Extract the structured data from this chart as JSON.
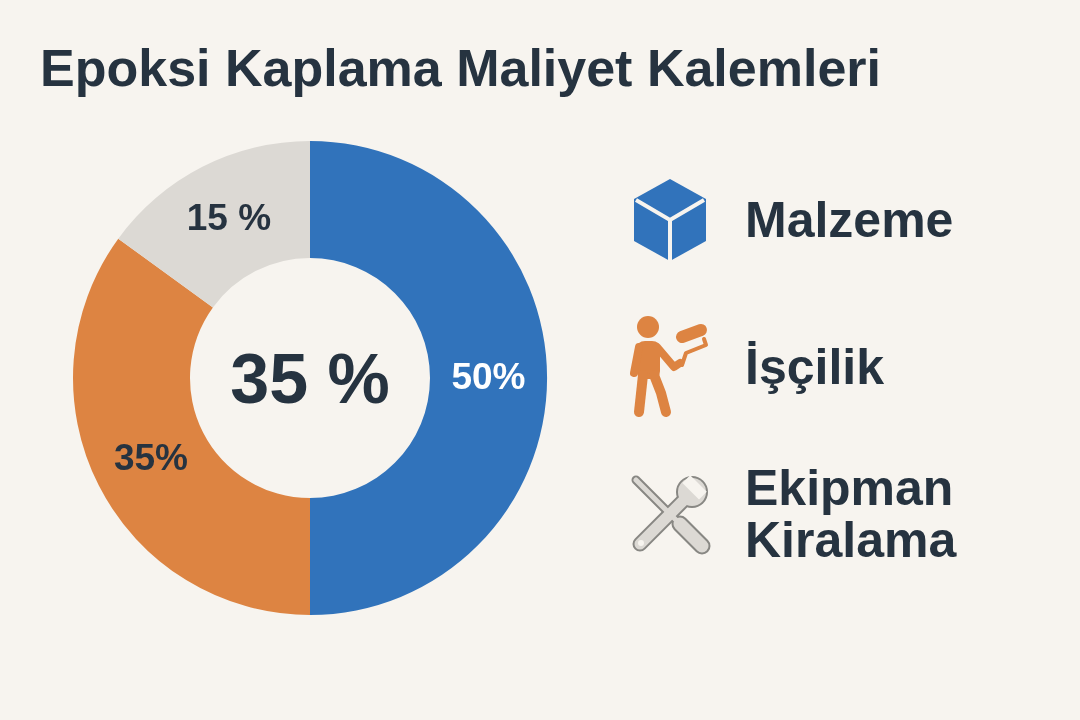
{
  "chart_data": {
    "type": "donut",
    "title": "Epoksi Kaplama Maliyet Kalemleri",
    "categories": [
      "Malzeme",
      "İşçilik",
      "Ekipman Kiralama"
    ],
    "values": [
      50,
      35,
      15
    ],
    "colors": [
      "#3173bb",
      "#dd8442",
      "#dcd9d4"
    ],
    "value_labels": [
      "50%",
      "35%",
      "15 %"
    ],
    "annotations": [
      "35 %"
    ],
    "legend": "right"
  }
}
